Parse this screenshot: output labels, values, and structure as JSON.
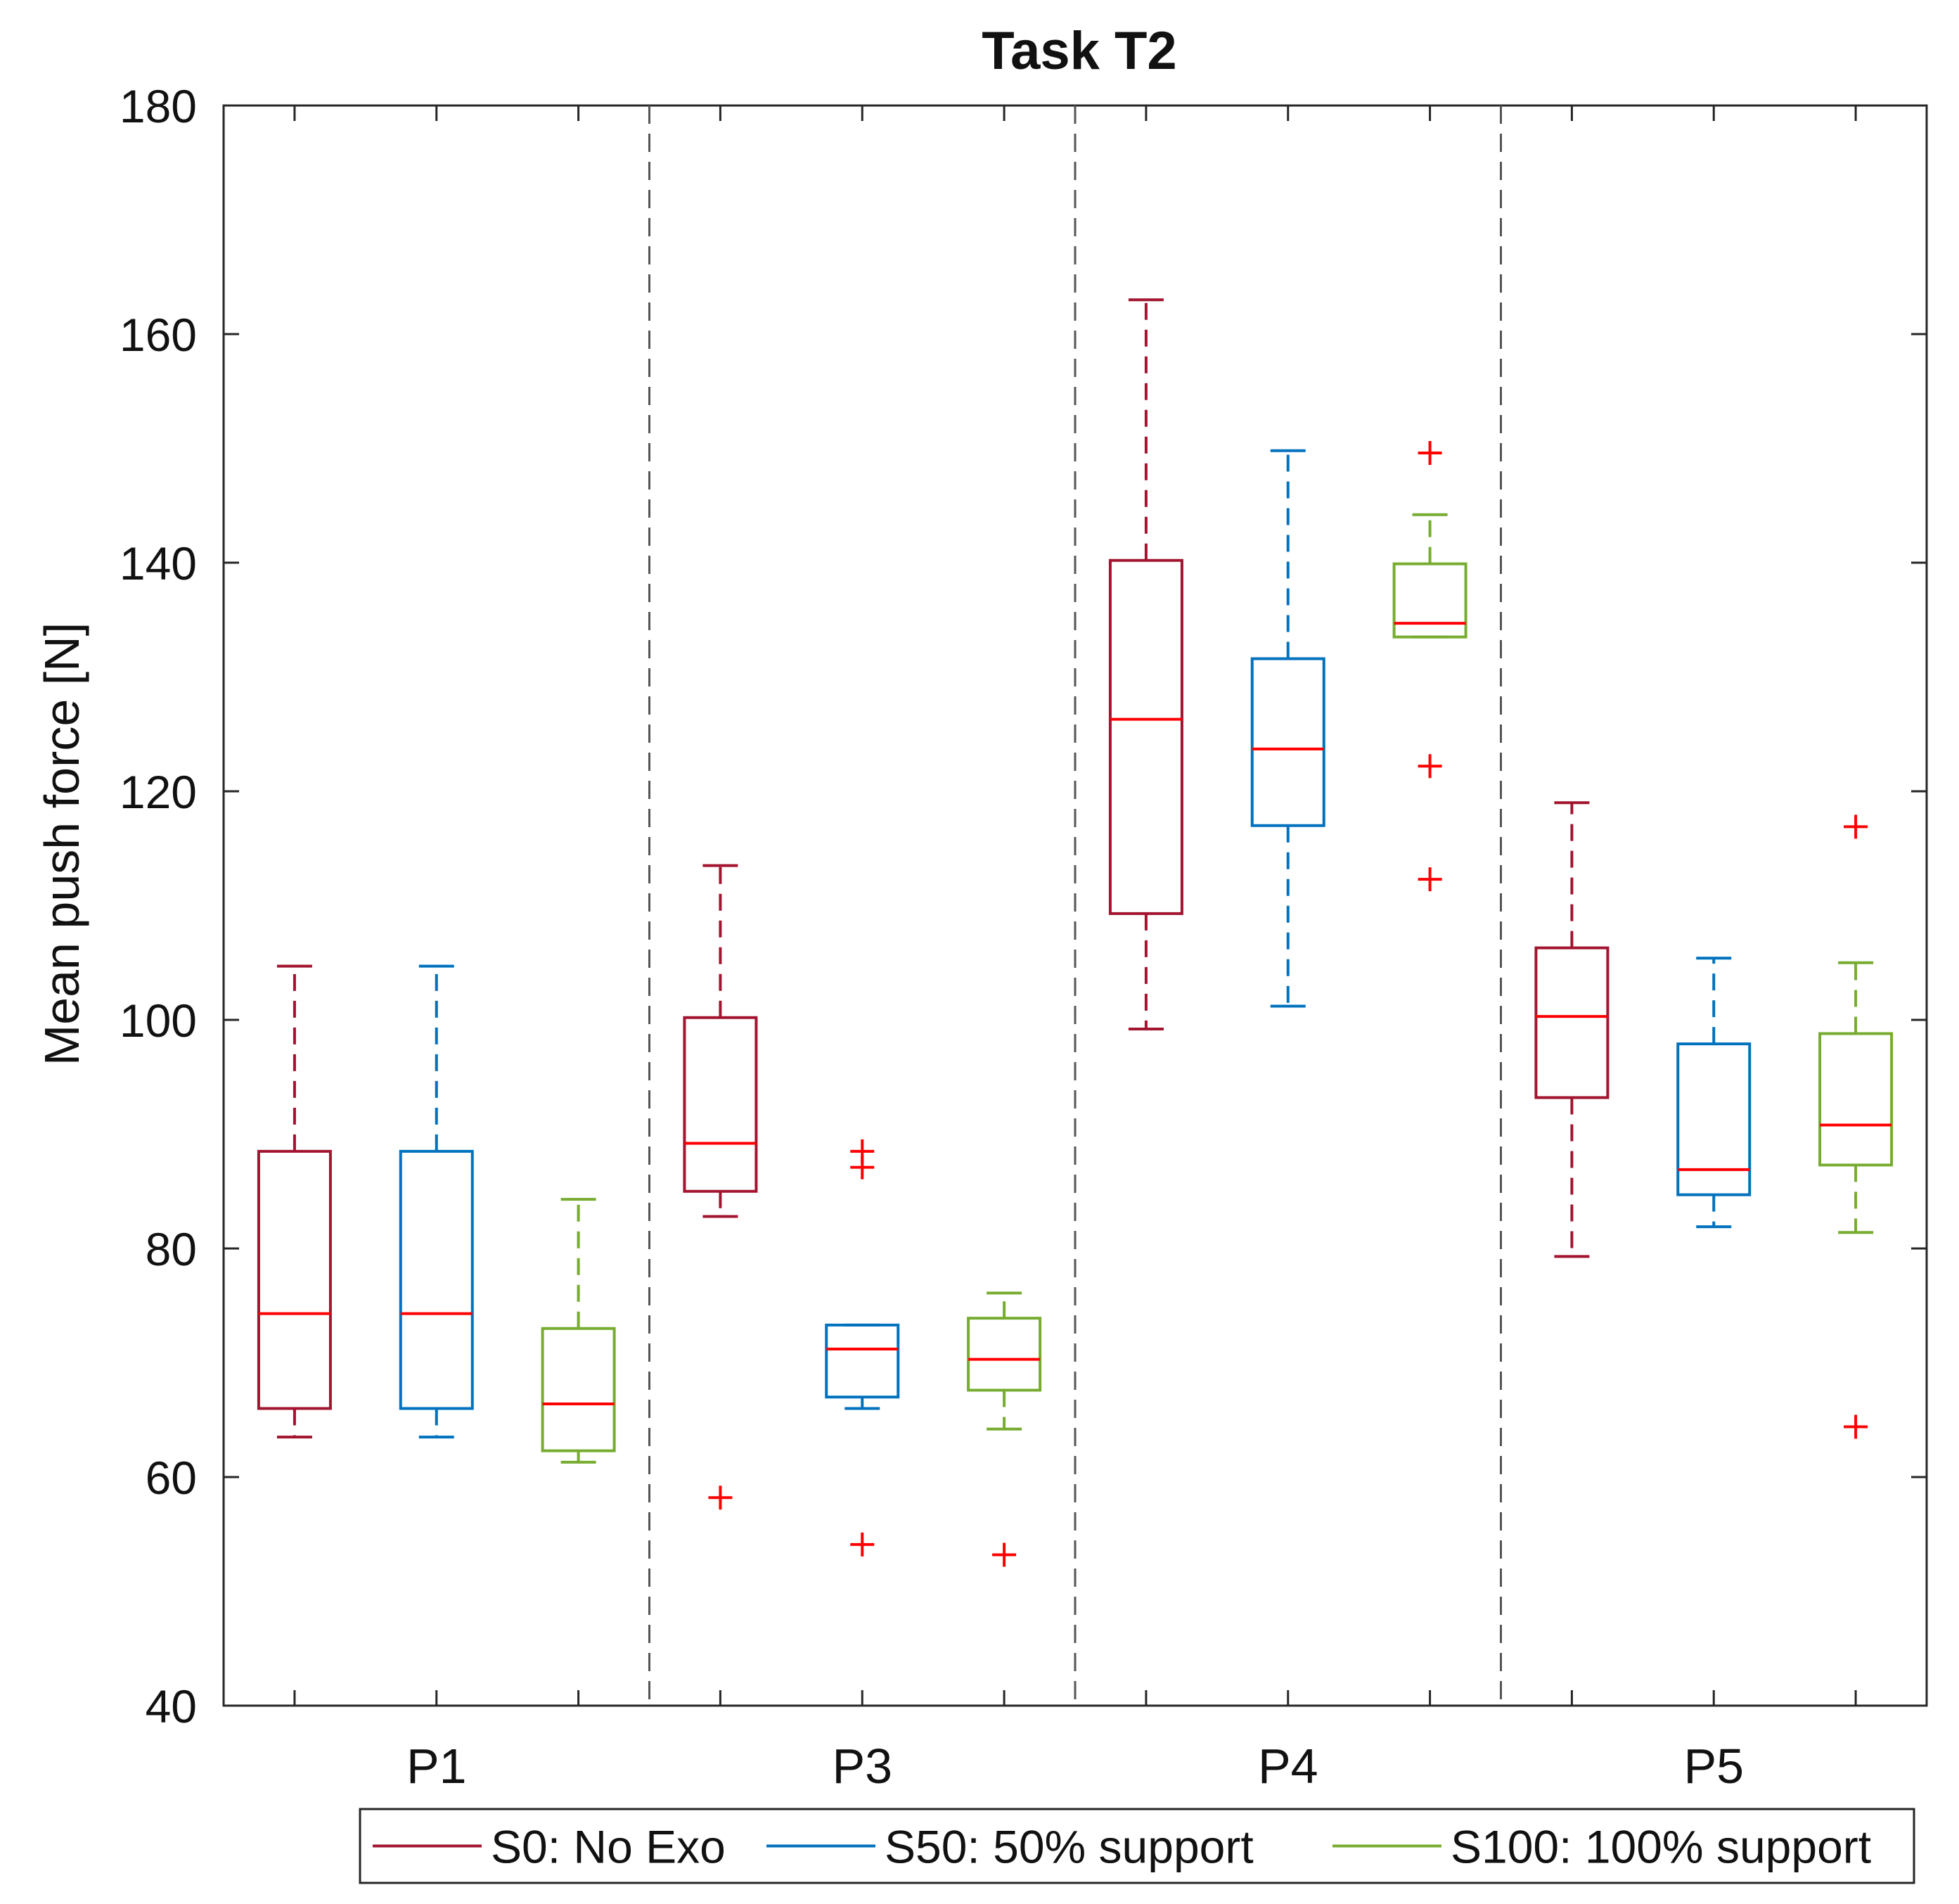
{
  "chart_data": {
    "type": "box",
    "title": "Task T2",
    "xlabel": "",
    "ylabel": "Mean push force [N]",
    "ylim": [
      40,
      180
    ],
    "yticks": [
      40,
      60,
      80,
      100,
      120,
      140,
      160,
      180
    ],
    "grid": false,
    "groups": [
      "P1",
      "P3",
      "P4",
      "P5"
    ],
    "legend_position": "bottom-right",
    "series": [
      {
        "name": "S0: No Exo",
        "color": "#a2142f",
        "boxes": [
          {
            "group": "P1",
            "min": 63.5,
            "q1": 66,
            "median": 74.3,
            "q3": 88.5,
            "max": 104.7,
            "outliers": []
          },
          {
            "group": "P3",
            "min": 82.8,
            "q1": 85,
            "median": 89.2,
            "q3": 100.2,
            "max": 113.5,
            "outliers": [
              58.2
            ]
          },
          {
            "group": "P4",
            "min": 99.2,
            "q1": 109.3,
            "median": 126.3,
            "q3": 140.2,
            "max": 163,
            "outliers": []
          },
          {
            "group": "P5",
            "min": 79.3,
            "q1": 93.2,
            "median": 100.3,
            "q3": 106.3,
            "max": 119,
            "outliers": []
          }
        ]
      },
      {
        "name": "S50: 50% support",
        "color": "#0072bd",
        "boxes": [
          {
            "group": "P1",
            "min": 63.5,
            "q1": 66,
            "median": 74.3,
            "q3": 88.5,
            "max": 104.7,
            "outliers": []
          },
          {
            "group": "P3",
            "min": 66,
            "q1": 67,
            "median": 71.2,
            "q3": 73.3,
            "max": 73.3,
            "outliers": [
              88.5,
              87.1,
              54.1
            ]
          },
          {
            "group": "P4",
            "min": 101.2,
            "q1": 117,
            "median": 123.7,
            "q3": 131.6,
            "max": 149.8,
            "outliers": []
          },
          {
            "group": "P5",
            "min": 81.9,
            "q1": 84.7,
            "median": 86.9,
            "q3": 97.9,
            "max": 105.4,
            "outliers": []
          }
        ]
      },
      {
        "name": "S100: 100% support",
        "color": "#77ac30",
        "boxes": [
          {
            "group": "P1",
            "min": 61.3,
            "q1": 62.3,
            "median": 66.4,
            "q3": 73,
            "max": 84.3,
            "outliers": []
          },
          {
            "group": "P3",
            "min": 64.2,
            "q1": 67.6,
            "median": 70.3,
            "q3": 73.9,
            "max": 76.1,
            "outliers": [
              53.2
            ]
          },
          {
            "group": "P4",
            "min": 133.5,
            "q1": 133.5,
            "median": 134.7,
            "q3": 139.9,
            "max": 144.2,
            "outliers": [
              149.6,
              122.2,
              112.3
            ]
          },
          {
            "group": "P5",
            "min": 81.4,
            "q1": 87.3,
            "median": 90.8,
            "q3": 98.8,
            "max": 105,
            "outliers": [
              116.9,
              64.4
            ]
          }
        ]
      }
    ]
  }
}
